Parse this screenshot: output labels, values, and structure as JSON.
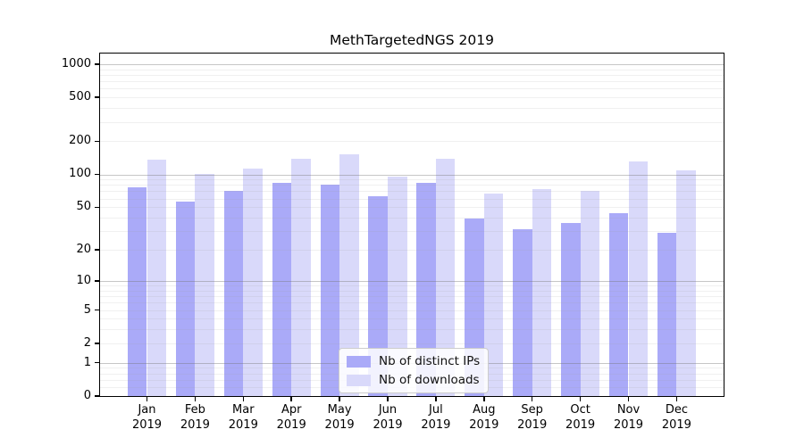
{
  "chart_data": {
    "type": "bar",
    "title": "MethTargetedNGS 2019",
    "categories": [
      "Jan",
      "Feb",
      "Mar",
      "Apr",
      "May",
      "Jun",
      "Jul",
      "Aug",
      "Sep",
      "Oct",
      "Nov",
      "Dec"
    ],
    "category_year": "2019",
    "series": [
      {
        "name": "Nb of distinct IPs",
        "color": "#aaaaf8",
        "values": [
          76,
          56,
          70,
          83,
          81,
          63,
          83,
          39,
          31,
          36,
          44,
          29
        ]
      },
      {
        "name": "Nb of downloads",
        "color": "#d9d9fa",
        "values": [
          135,
          101,
          112,
          140,
          152,
          96,
          139,
          67,
          74,
          71,
          130,
          108
        ]
      }
    ],
    "xlabel": "",
    "ylabel": "",
    "y_scale": "log1p",
    "y_ticks": [
      1000,
      500,
      200,
      100,
      50,
      20,
      10,
      5,
      2,
      1,
      0
    ],
    "y_major_grid_values": [
      1,
      10,
      100,
      1000
    ],
    "y_minor_grid_values": [
      0.2,
      0.4,
      0.6,
      0.8,
      2,
      3,
      4,
      5,
      6,
      7,
      8,
      9,
      20,
      30,
      40,
      50,
      60,
      70,
      80,
      90,
      200,
      300,
      400,
      500,
      600,
      700,
      800,
      900
    ],
    "ylim": [
      0,
      1225
    ],
    "grid": true,
    "legend_position": "lower-center-inside"
  }
}
